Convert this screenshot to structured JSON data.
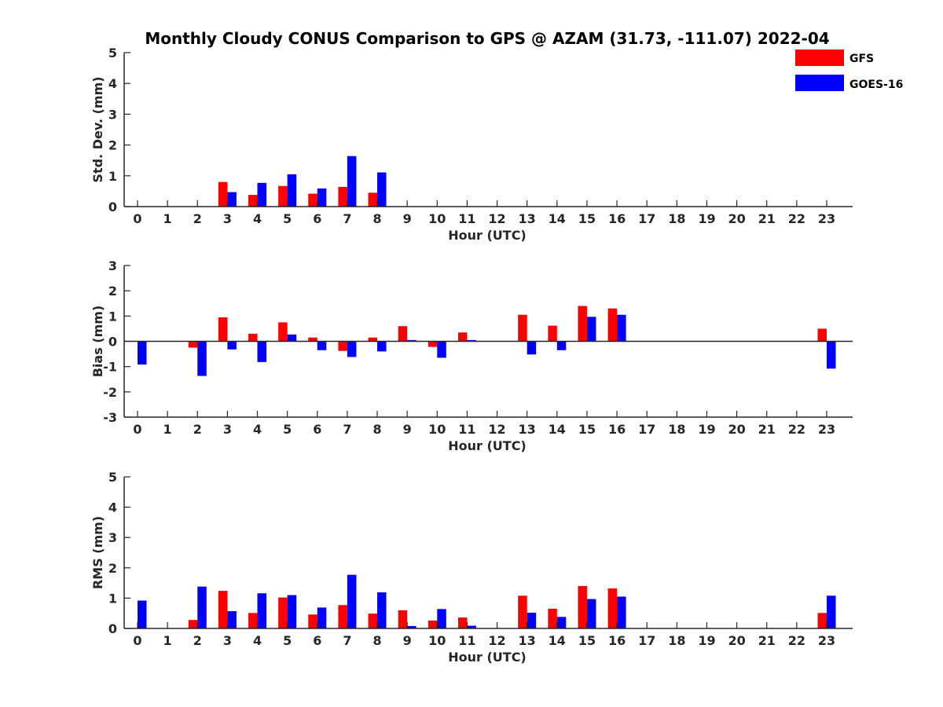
{
  "chart_data": {
    "title": "Monthly Cloudy CONUS Comparison to GPS @ AZAM (31.73, -111.07) 2022-04",
    "legend": {
      "position": "top-right",
      "entries": [
        {
          "name": "GFS",
          "color": "#ff0000"
        },
        {
          "name": "GOES-16",
          "color": "#0000ff"
        }
      ]
    },
    "panels": [
      {
        "type": "bar",
        "key": "std",
        "ylabel": "Std. Dev. (mm)",
        "xlabel": "Hour (UTC)",
        "ylim": [
          0,
          5
        ],
        "yticks": [
          0,
          1,
          2,
          3,
          4,
          5
        ],
        "categories": [
          "0",
          "1",
          "2",
          "3",
          "4",
          "5",
          "6",
          "7",
          "8",
          "9",
          "10",
          "11",
          "12",
          "13",
          "14",
          "15",
          "16",
          "17",
          "18",
          "19",
          "20",
          "21",
          "22",
          "23"
        ],
        "series": [
          {
            "name": "GFS",
            "color": "#ff0000",
            "values": [
              0,
              0,
              0,
              0.8,
              0.38,
              0.67,
              0.42,
              0.64,
              0.45,
              0,
              0,
              0,
              0,
              0,
              0,
              0,
              0,
              0,
              0,
              0,
              0,
              0,
              0,
              0
            ]
          },
          {
            "name": "GOES-16",
            "color": "#0000ff",
            "values": [
              0,
              0,
              0,
              0.47,
              0.77,
              1.05,
              0.59,
              1.64,
              1.11,
              0,
              0,
              0,
              0,
              0,
              0,
              0,
              0,
              0,
              0,
              0,
              0,
              0,
              0,
              0
            ]
          }
        ]
      },
      {
        "type": "bar",
        "key": "bias",
        "ylabel": "Bias (mm)",
        "xlabel": "Hour (UTC)",
        "ylim": [
          -3,
          3
        ],
        "yticks": [
          -3,
          -2,
          -1,
          0,
          1,
          2,
          3
        ],
        "categories": [
          "0",
          "1",
          "2",
          "3",
          "4",
          "5",
          "6",
          "7",
          "8",
          "9",
          "10",
          "11",
          "12",
          "13",
          "14",
          "15",
          "16",
          "17",
          "18",
          "19",
          "20",
          "21",
          "22",
          "23"
        ],
        "series": [
          {
            "name": "GFS",
            "color": "#ff0000",
            "values": [
              0,
              0,
              -0.25,
              0.95,
              0.3,
              0.75,
              0.15,
              -0.38,
              0.15,
              0.6,
              -0.22,
              0.35,
              0,
              1.05,
              0.62,
              1.4,
              1.3,
              0,
              0,
              0,
              0,
              0,
              0,
              0.5
            ]
          },
          {
            "name": "GOES-16",
            "color": "#0000ff",
            "values": [
              -0.92,
              0,
              -1.37,
              -0.32,
              -0.82,
              0.27,
              -0.35,
              -0.62,
              -0.4,
              0.05,
              -0.65,
              0.05,
              0,
              -0.52,
              -0.35,
              0.97,
              1.05,
              0,
              0,
              0,
              0,
              0,
              0,
              -1.08
            ]
          }
        ]
      },
      {
        "type": "bar",
        "key": "rms",
        "ylabel": "RMS (mm)",
        "xlabel": "Hour (UTC)",
        "ylim": [
          0,
          5
        ],
        "yticks": [
          0,
          1,
          2,
          3,
          4,
          5
        ],
        "categories": [
          "0",
          "1",
          "2",
          "3",
          "4",
          "5",
          "6",
          "7",
          "8",
          "9",
          "10",
          "11",
          "12",
          "13",
          "14",
          "15",
          "16",
          "17",
          "18",
          "19",
          "20",
          "21",
          "22",
          "23"
        ],
        "series": [
          {
            "name": "GFS",
            "color": "#ff0000",
            "values": [
              0,
              0,
              0.28,
              1.24,
              0.51,
              1.02,
              0.46,
              0.77,
              0.49,
              0.6,
              0.26,
              0.36,
              0,
              1.08,
              0.65,
              1.4,
              1.32,
              0,
              0,
              0,
              0,
              0,
              0,
              0.51
            ]
          },
          {
            "name": "GOES-16",
            "color": "#0000ff",
            "values": [
              0.92,
              0,
              1.38,
              0.57,
              1.16,
              1.1,
              0.69,
              1.77,
              1.19,
              0.08,
              0.64,
              0.09,
              0,
              0.52,
              0.38,
              0.97,
              1.05,
              0,
              0,
              0,
              0,
              0,
              0,
              1.08
            ]
          }
        ]
      }
    ]
  }
}
